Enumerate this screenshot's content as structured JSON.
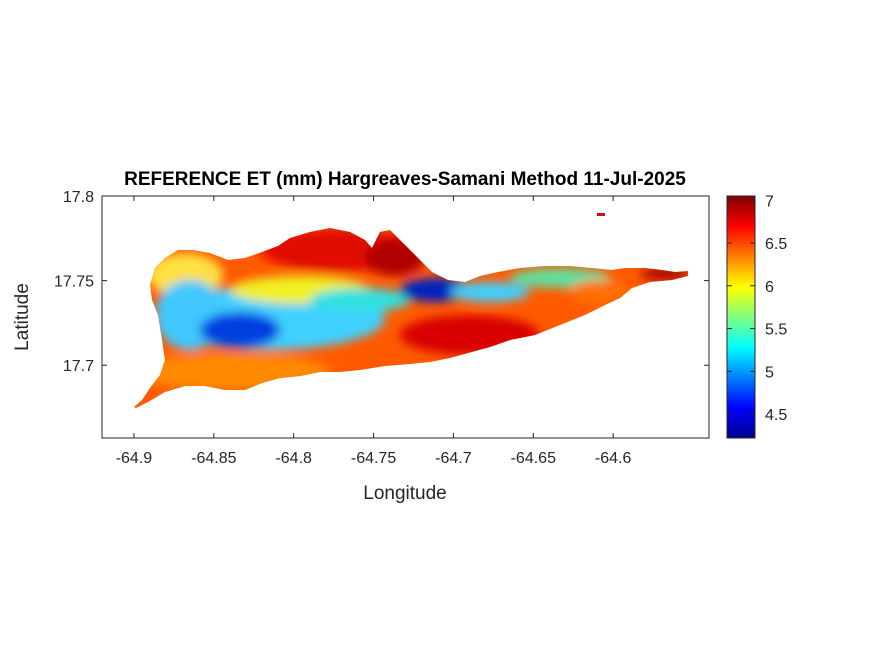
{
  "chart_data": {
    "type": "heatmap",
    "title": "REFERENCE ET (mm) Hargreaves-Samani Method  11-Jul-2025",
    "xlabel": "Longitude",
    "ylabel": "Latitude",
    "xlim": [
      -64.92,
      -64.54
    ],
    "ylim": [
      17.657,
      17.8
    ],
    "xticks": [
      -64.9,
      -64.85,
      -64.8,
      -64.75,
      -64.7,
      -64.65,
      -64.6
    ],
    "xtick_labels": [
      "-64.9",
      "-64.85",
      "-64.8",
      "-64.75",
      "-64.7",
      "-64.65",
      "-64.6"
    ],
    "yticks": [
      17.7,
      17.75,
      17.8
    ],
    "ytick_labels": [
      "17.7",
      "17.75",
      "17.8"
    ],
    "colorbar": {
      "colormap": "jet",
      "range": [
        4.22,
        7.05
      ],
      "ticks": [
        4.5,
        5,
        5.5,
        6,
        6.5,
        7
      ],
      "tick_labels": [
        "4.5",
        "5",
        "5.5",
        "6",
        "6.5",
        "7"
      ]
    },
    "grid": false
  }
}
